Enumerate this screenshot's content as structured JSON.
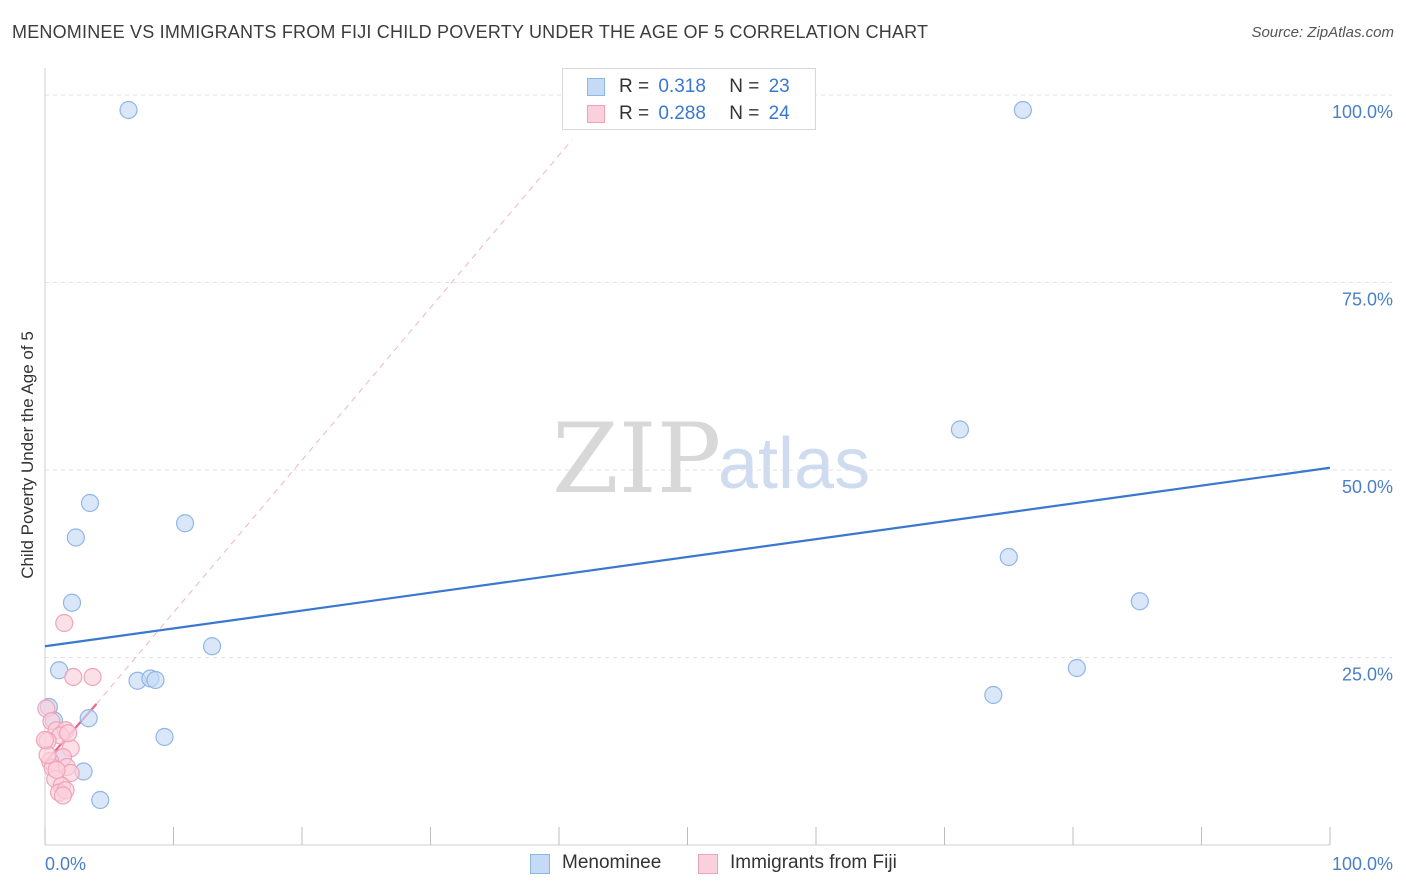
{
  "title": "MENOMINEE VS IMMIGRANTS FROM FIJI CHILD POVERTY UNDER THE AGE OF 5 CORRELATION CHART",
  "source": "Source: ZipAtlas.com",
  "watermark": {
    "zip": "ZIP",
    "atlas": "atlas"
  },
  "stats": [
    {
      "r_label": "R =",
      "r_value": "0.318",
      "n_label": "N =",
      "n_value": "23",
      "color": "#8fb6e8",
      "fill": "#c5daf5"
    },
    {
      "r_label": "R =",
      "r_value": "0.288",
      "n_label": "N =",
      "n_value": "24",
      "color": "#f0a3b8",
      "fill": "#fad0dc"
    }
  ],
  "legend": [
    {
      "label": "Menominee",
      "color": "#8fb6e8",
      "fill": "#c5daf5"
    },
    {
      "label": "Immigrants from Fiji",
      "color": "#f0a3b8",
      "fill": "#fad0dc"
    }
  ],
  "chart_data": {
    "type": "scatter",
    "title": "MENOMINEE VS IMMIGRANTS FROM FIJI CHILD POVERTY UNDER THE AGE OF 5 CORRELATION CHART",
    "xlabel": "",
    "ylabel": "Child Poverty Under the Age of 5",
    "xlim": [
      0,
      100
    ],
    "ylim": [
      0,
      100
    ],
    "x_tick_labels": [
      "0.0%",
      "100.0%"
    ],
    "y_ticks": [
      25,
      50,
      75,
      100
    ],
    "y_tick_labels": [
      "25.0%",
      "50.0%",
      "75.0%",
      "100.0%"
    ],
    "grid": true,
    "series": [
      {
        "name": "Menominee",
        "color": "#3a78d0",
        "marker_fill": "#c5daf5",
        "marker_stroke": "#8fb6e8",
        "points": [
          [
            6.5,
            98
          ],
          [
            76.1,
            98
          ],
          [
            71.2,
            55.4
          ],
          [
            75.0,
            38.4
          ],
          [
            85.2,
            32.5
          ],
          [
            80.3,
            23.6
          ],
          [
            73.8,
            20.0
          ],
          [
            3.5,
            45.6
          ],
          [
            2.4,
            41.0
          ],
          [
            10.9,
            42.9
          ],
          [
            2.1,
            32.3
          ],
          [
            13.0,
            26.5
          ],
          [
            1.1,
            23.3
          ],
          [
            7.2,
            21.9
          ],
          [
            8.2,
            22.2
          ],
          [
            8.6,
            22.0
          ],
          [
            3.4,
            16.9
          ],
          [
            0.3,
            18.4
          ],
          [
            0.7,
            16.6
          ],
          [
            9.3,
            14.4
          ],
          [
            1.4,
            11.7
          ],
          [
            3.0,
            9.8
          ],
          [
            4.3,
            6.0
          ]
        ],
        "trend": {
          "x": [
            0,
            100
          ],
          "y": [
            26.5,
            50.3
          ]
        }
      },
      {
        "name": "Immigrants from Fiji",
        "color": "#e8648e",
        "marker_fill": "#fad0dc",
        "marker_stroke": "#f0a3b8",
        "points": [
          [
            1.5,
            29.6
          ],
          [
            2.2,
            22.4
          ],
          [
            3.7,
            22.4
          ],
          [
            0.1,
            18.2
          ],
          [
            0.5,
            16.5
          ],
          [
            0.9,
            15.3
          ],
          [
            1.6,
            15.3
          ],
          [
            1.2,
            14.6
          ],
          [
            0.2,
            13.9
          ],
          [
            2.0,
            12.9
          ],
          [
            1.4,
            11.7
          ],
          [
            0.4,
            11.2
          ],
          [
            0.6,
            10.3
          ],
          [
            1.7,
            10.4
          ],
          [
            2.0,
            9.6
          ],
          [
            0.8,
            8.8
          ],
          [
            1.3,
            7.9
          ],
          [
            0.2,
            12.0
          ],
          [
            1.1,
            7.0
          ],
          [
            1.6,
            7.3
          ],
          [
            0.9,
            10.0
          ],
          [
            1.4,
            6.6
          ],
          [
            0.0,
            14.0
          ],
          [
            1.8,
            14.9
          ]
        ],
        "trend": {
          "x": [
            0,
            4
          ],
          "y": [
            11.0,
            18.8
          ]
        },
        "trend_extended": {
          "x": [
            4,
            41
          ],
          "y": [
            18.8,
            94.0
          ]
        }
      }
    ]
  }
}
